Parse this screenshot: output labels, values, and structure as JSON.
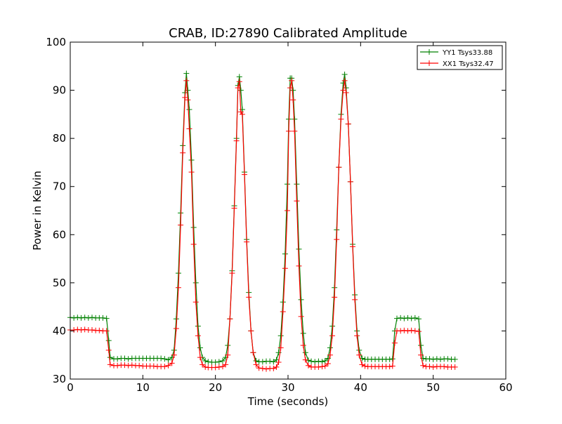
{
  "chart_data": {
    "type": "line",
    "title": "CRAB, ID:27890 Calibrated Amplitude",
    "xlabel": "Time (seconds)",
    "ylabel": "Power in Kelvin",
    "xlim": [
      0,
      60
    ],
    "ylim": [
      30,
      100
    ],
    "xticks": [
      0,
      10,
      20,
      30,
      40,
      50,
      60
    ],
    "yticks": [
      30,
      40,
      50,
      60,
      70,
      80,
      90,
      100
    ],
    "grid": false,
    "legend_position": "upper-right",
    "marker": "+",
    "series": [
      {
        "name": "YY1 Tsys33.88",
        "color": "#008000",
        "points": [
          [
            0.0,
            42.8
          ],
          [
            0.5,
            42.7
          ],
          [
            1.0,
            42.8
          ],
          [
            1.5,
            42.7
          ],
          [
            2.0,
            42.8
          ],
          [
            2.5,
            42.7
          ],
          [
            3.0,
            42.8
          ],
          [
            3.5,
            42.7
          ],
          [
            4.0,
            42.7
          ],
          [
            4.5,
            42.7
          ],
          [
            5.0,
            42.6
          ],
          [
            5.3,
            38.0
          ],
          [
            5.5,
            34.5
          ],
          [
            6.0,
            34.2
          ],
          [
            6.5,
            34.2
          ],
          [
            7.0,
            34.3
          ],
          [
            7.5,
            34.3
          ],
          [
            8.0,
            34.2
          ],
          [
            8.5,
            34.3
          ],
          [
            9.0,
            34.3
          ],
          [
            9.5,
            34.3
          ],
          [
            10.0,
            34.3
          ],
          [
            10.5,
            34.3
          ],
          [
            11.0,
            34.3
          ],
          [
            11.5,
            34.3
          ],
          [
            12.0,
            34.3
          ],
          [
            12.5,
            34.3
          ],
          [
            13.0,
            34.2
          ],
          [
            13.5,
            34.0
          ],
          [
            14.0,
            34.5
          ],
          [
            14.3,
            36.0
          ],
          [
            14.6,
            42.5
          ],
          [
            14.9,
            52.0
          ],
          [
            15.2,
            64.5
          ],
          [
            15.5,
            78.5
          ],
          [
            15.8,
            89.5
          ],
          [
            16.0,
            93.5
          ],
          [
            16.2,
            90.0
          ],
          [
            16.4,
            86.0
          ],
          [
            16.7,
            75.5
          ],
          [
            17.0,
            61.5
          ],
          [
            17.3,
            50.0
          ],
          [
            17.6,
            41.0
          ],
          [
            17.9,
            36.5
          ],
          [
            18.2,
            34.5
          ],
          [
            18.6,
            33.8
          ],
          [
            19.0,
            33.6
          ],
          [
            19.5,
            33.5
          ],
          [
            20.0,
            33.5
          ],
          [
            20.5,
            33.6
          ],
          [
            21.0,
            33.8
          ],
          [
            21.4,
            34.5
          ],
          [
            21.7,
            37.0
          ],
          [
            22.0,
            42.5
          ],
          [
            22.3,
            52.5
          ],
          [
            22.6,
            66.0
          ],
          [
            22.9,
            80.0
          ],
          [
            23.1,
            91.0
          ],
          [
            23.3,
            92.8
          ],
          [
            23.5,
            90.0
          ],
          [
            23.7,
            86.0
          ],
          [
            24.0,
            73.0
          ],
          [
            24.3,
            59.0
          ],
          [
            24.6,
            48.0
          ],
          [
            24.9,
            40.0
          ],
          [
            25.2,
            35.5
          ],
          [
            25.6,
            33.8
          ],
          [
            26.0,
            33.6
          ],
          [
            26.5,
            33.6
          ],
          [
            27.0,
            33.7
          ],
          [
            27.5,
            33.7
          ],
          [
            28.0,
            33.6
          ],
          [
            28.4,
            34.0
          ],
          [
            28.7,
            35.5
          ],
          [
            29.0,
            39.0
          ],
          [
            29.3,
            46.0
          ],
          [
            29.6,
            56.0
          ],
          [
            29.9,
            70.5
          ],
          [
            30.1,
            84.0
          ],
          [
            30.3,
            92.5
          ],
          [
            30.5,
            92.5
          ],
          [
            30.7,
            90.0
          ],
          [
            30.9,
            84.0
          ],
          [
            31.2,
            70.5
          ],
          [
            31.5,
            57.0
          ],
          [
            31.8,
            46.5
          ],
          [
            32.1,
            39.5
          ],
          [
            32.4,
            35.5
          ],
          [
            32.8,
            33.9
          ],
          [
            33.2,
            33.7
          ],
          [
            33.7,
            33.6
          ],
          [
            34.2,
            33.7
          ],
          [
            34.7,
            33.6
          ],
          [
            35.1,
            33.8
          ],
          [
            35.5,
            34.3
          ],
          [
            35.8,
            36.5
          ],
          [
            36.1,
            41.0
          ],
          [
            36.4,
            49.0
          ],
          [
            36.7,
            61.0
          ],
          [
            37.0,
            74.0
          ],
          [
            37.3,
            85.0
          ],
          [
            37.6,
            91.5
          ],
          [
            37.8,
            93.3
          ],
          [
            38.0,
            90.5
          ],
          [
            38.3,
            83.0
          ],
          [
            38.6,
            71.0
          ],
          [
            38.9,
            58.0
          ],
          [
            39.2,
            47.5
          ],
          [
            39.5,
            40.0
          ],
          [
            39.8,
            36.0
          ],
          [
            40.2,
            34.3
          ],
          [
            40.6,
            34.1
          ],
          [
            41.0,
            34.1
          ],
          [
            41.5,
            34.1
          ],
          [
            42.0,
            34.1
          ],
          [
            42.5,
            34.1
          ],
          [
            43.0,
            34.1
          ],
          [
            43.5,
            34.1
          ],
          [
            44.0,
            34.1
          ],
          [
            44.4,
            34.2
          ],
          [
            44.7,
            40.0
          ],
          [
            45.0,
            42.6
          ],
          [
            45.5,
            42.7
          ],
          [
            46.0,
            42.6
          ],
          [
            46.5,
            42.7
          ],
          [
            47.0,
            42.6
          ],
          [
            47.5,
            42.7
          ],
          [
            48.0,
            42.5
          ],
          [
            48.3,
            37.0
          ],
          [
            48.6,
            34.3
          ],
          [
            49.0,
            34.2
          ],
          [
            49.5,
            34.2
          ],
          [
            50.0,
            34.1
          ],
          [
            50.5,
            34.2
          ],
          [
            51.0,
            34.1
          ],
          [
            51.5,
            34.2
          ],
          [
            52.0,
            34.2
          ],
          [
            52.5,
            34.1
          ],
          [
            53.0,
            34.1
          ]
        ]
      },
      {
        "name": "XX1 Tsys32.47",
        "color": "#ff0000",
        "points": [
          [
            0.0,
            40.2
          ],
          [
            0.5,
            40.2
          ],
          [
            1.0,
            40.3
          ],
          [
            1.5,
            40.2
          ],
          [
            2.0,
            40.3
          ],
          [
            2.5,
            40.2
          ],
          [
            3.0,
            40.2
          ],
          [
            3.5,
            40.1
          ],
          [
            4.0,
            40.1
          ],
          [
            4.5,
            40.0
          ],
          [
            5.0,
            40.0
          ],
          [
            5.3,
            36.0
          ],
          [
            5.5,
            33.0
          ],
          [
            6.0,
            32.8
          ],
          [
            6.5,
            32.8
          ],
          [
            7.0,
            32.9
          ],
          [
            7.5,
            32.9
          ],
          [
            8.0,
            32.8
          ],
          [
            8.5,
            32.9
          ],
          [
            9.0,
            32.8
          ],
          [
            9.5,
            32.8
          ],
          [
            10.0,
            32.7
          ],
          [
            10.5,
            32.7
          ],
          [
            11.0,
            32.7
          ],
          [
            11.5,
            32.7
          ],
          [
            12.0,
            32.6
          ],
          [
            12.5,
            32.6
          ],
          [
            13.0,
            32.6
          ],
          [
            13.5,
            32.8
          ],
          [
            14.0,
            33.3
          ],
          [
            14.3,
            35.0
          ],
          [
            14.6,
            40.5
          ],
          [
            14.9,
            49.0
          ],
          [
            15.2,
            62.0
          ],
          [
            15.5,
            77.0
          ],
          [
            15.8,
            88.5
          ],
          [
            16.0,
            92.0
          ],
          [
            16.2,
            88.0
          ],
          [
            16.4,
            82.0
          ],
          [
            16.7,
            73.0
          ],
          [
            17.0,
            58.0
          ],
          [
            17.3,
            46.0
          ],
          [
            17.6,
            39.0
          ],
          [
            17.9,
            34.5
          ],
          [
            18.2,
            33.0
          ],
          [
            18.6,
            32.5
          ],
          [
            19.0,
            32.4
          ],
          [
            19.5,
            32.4
          ],
          [
            20.0,
            32.4
          ],
          [
            20.5,
            32.5
          ],
          [
            21.0,
            32.6
          ],
          [
            21.4,
            33.0
          ],
          [
            21.7,
            35.0
          ],
          [
            22.0,
            42.5
          ],
          [
            22.3,
            52.0
          ],
          [
            22.6,
            65.5
          ],
          [
            22.9,
            79.5
          ],
          [
            23.1,
            90.5
          ],
          [
            23.3,
            91.8
          ],
          [
            23.5,
            85.5
          ],
          [
            23.7,
            85.0
          ],
          [
            24.0,
            72.5
          ],
          [
            24.3,
            58.5
          ],
          [
            24.6,
            47.0
          ],
          [
            24.9,
            40.0
          ],
          [
            25.2,
            35.5
          ],
          [
            25.6,
            33.0
          ],
          [
            26.0,
            32.3
          ],
          [
            26.5,
            32.2
          ],
          [
            27.0,
            32.1
          ],
          [
            27.5,
            32.2
          ],
          [
            28.0,
            32.2
          ],
          [
            28.4,
            32.5
          ],
          [
            28.7,
            33.5
          ],
          [
            29.0,
            36.5
          ],
          [
            29.3,
            44.0
          ],
          [
            29.6,
            53.0
          ],
          [
            29.9,
            65.0
          ],
          [
            30.1,
            81.5
          ],
          [
            30.3,
            90.5
          ],
          [
            30.5,
            92.0
          ],
          [
            30.7,
            88.0
          ],
          [
            30.9,
            81.5
          ],
          [
            31.2,
            67.0
          ],
          [
            31.5,
            53.5
          ],
          [
            31.8,
            43.0
          ],
          [
            32.1,
            37.0
          ],
          [
            32.4,
            34.0
          ],
          [
            32.8,
            32.8
          ],
          [
            33.2,
            32.5
          ],
          [
            33.7,
            32.5
          ],
          [
            34.2,
            32.5
          ],
          [
            34.7,
            32.6
          ],
          [
            35.1,
            32.7
          ],
          [
            35.5,
            33.2
          ],
          [
            35.8,
            35.0
          ],
          [
            36.1,
            39.0
          ],
          [
            36.4,
            47.0
          ],
          [
            36.7,
            59.0
          ],
          [
            37.0,
            74.0
          ],
          [
            37.3,
            84.0
          ],
          [
            37.6,
            90.0
          ],
          [
            37.8,
            92.0
          ],
          [
            38.0,
            89.5
          ],
          [
            38.3,
            83.0
          ],
          [
            38.6,
            71.0
          ],
          [
            38.9,
            57.5
          ],
          [
            39.2,
            46.5
          ],
          [
            39.5,
            39.0
          ],
          [
            39.8,
            35.0
          ],
          [
            40.2,
            33.0
          ],
          [
            40.6,
            32.7
          ],
          [
            41.0,
            32.6
          ],
          [
            41.5,
            32.6
          ],
          [
            42.0,
            32.6
          ],
          [
            42.5,
            32.6
          ],
          [
            43.0,
            32.6
          ],
          [
            43.5,
            32.6
          ],
          [
            44.0,
            32.6
          ],
          [
            44.4,
            32.7
          ],
          [
            44.7,
            37.5
          ],
          [
            45.0,
            40.0
          ],
          [
            45.5,
            40.0
          ],
          [
            46.0,
            40.1
          ],
          [
            46.5,
            40.0
          ],
          [
            47.0,
            40.1
          ],
          [
            47.5,
            40.0
          ],
          [
            48.0,
            39.9
          ],
          [
            48.3,
            35.0
          ],
          [
            48.6,
            32.8
          ],
          [
            49.0,
            32.6
          ],
          [
            49.5,
            32.6
          ],
          [
            50.0,
            32.5
          ],
          [
            50.5,
            32.6
          ],
          [
            51.0,
            32.6
          ],
          [
            51.5,
            32.6
          ],
          [
            52.0,
            32.5
          ],
          [
            52.5,
            32.5
          ],
          [
            53.0,
            32.5
          ]
        ]
      }
    ]
  }
}
